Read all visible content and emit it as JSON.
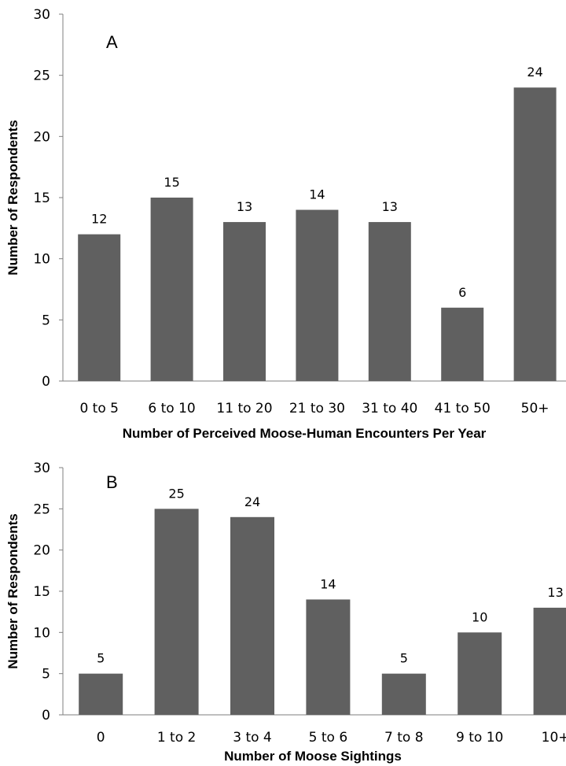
{
  "chart_data": [
    {
      "type": "bar",
      "panel_label": "A",
      "categories": [
        "0 to 5",
        "6 to 10",
        "11 to 20",
        "21 to 30",
        "31 to 40",
        "41 to 50",
        "50+"
      ],
      "values": [
        12,
        15,
        13,
        14,
        13,
        6,
        24
      ],
      "data_labels": [
        "12",
        "15",
        "13",
        "14",
        "13",
        "6",
        "24"
      ],
      "xlabel": "Number of Perceived Moose-Human Encounters Per Year",
      "ylabel": "Number of Respondents",
      "ylim": [
        0,
        30
      ],
      "yticks": [
        "0",
        "5",
        "10",
        "15",
        "20",
        "25",
        "30"
      ],
      "grid": false,
      "bar_color": "#606060"
    },
    {
      "type": "bar",
      "panel_label": "B",
      "categories": [
        "0",
        "1 to 2",
        "3 to 4",
        "5 to 6",
        "7 to 8",
        "9 to 10",
        "10+"
      ],
      "values": [
        5,
        25,
        24,
        14,
        5,
        10,
        13
      ],
      "data_labels": [
        "5",
        "25",
        "24",
        "14",
        "5",
        "10",
        "13"
      ],
      "xlabel": "Number of Moose Sightings",
      "ylabel": "Number of Respondents",
      "ylim": [
        0,
        30
      ],
      "yticks": [
        "0",
        "5",
        "10",
        "15",
        "20",
        "25",
        "30"
      ],
      "grid": false,
      "bar_color": "#606060"
    }
  ]
}
